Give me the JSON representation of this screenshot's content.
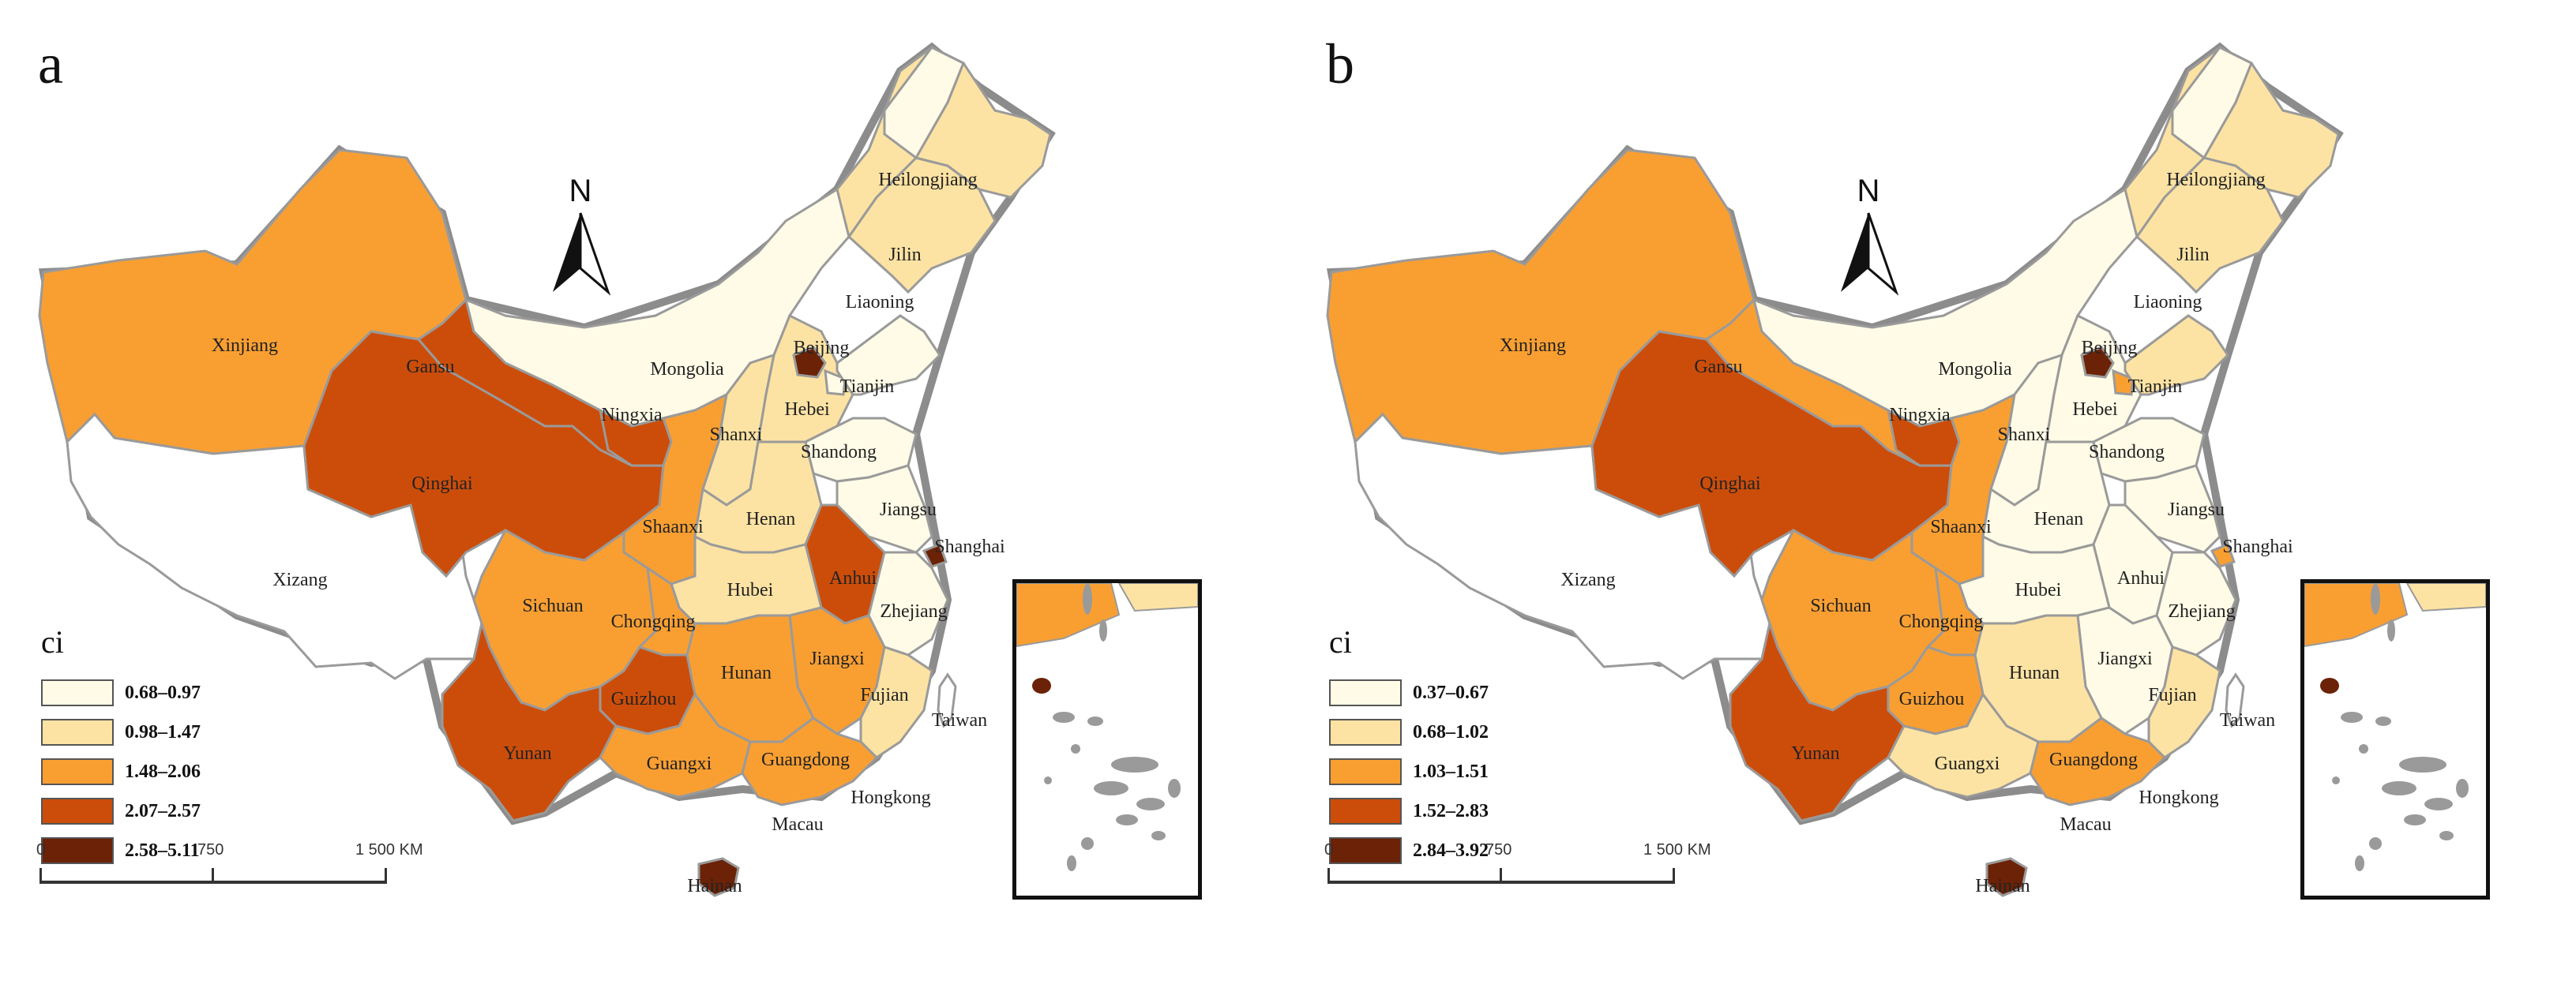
{
  "colors": {
    "class1": "#fffbe6",
    "class2": "#fde3a3",
    "class3": "#f99f32",
    "class4": "#cc4d0a",
    "class5": "#6b2206",
    "border": "#9a9a9a",
    "outline": "#8c8c8c"
  },
  "provinces": [
    "Xinjiang",
    "Xizang",
    "Qinghai",
    "Gansu",
    "Mongolia",
    "Ningxia",
    "Shaanxi",
    "Shanxi",
    "Hebei",
    "Beijing",
    "Tianjin",
    "Shandong",
    "Henan",
    "Jiangsu",
    "Shanghai",
    "Anhui",
    "Hubei",
    "Zhejiang",
    "Jiangxi",
    "Hunan",
    "Fujian",
    "Sichuan",
    "Chongqing",
    "Guizhou",
    "Yunan",
    "Guangxi",
    "Guangdong",
    "Hainan",
    "Liaoning",
    "Jilin",
    "Heilongjiang",
    "Taiwan",
    "Hongkong",
    "Macau"
  ],
  "panels": [
    {
      "letter": "a",
      "legend_title": "ci",
      "legend": [
        "0.68–0.97",
        "0.98–1.47",
        "1.48–2.06",
        "2.07–2.57",
        "2.58–5.11"
      ],
      "classes": {
        "Xinjiang": 3,
        "Xizang": 0,
        "Qinghai": 4,
        "Gansu": 4,
        "Mongolia": 1,
        "Ningxia": 4,
        "Shaanxi": 3,
        "Shanxi": 2,
        "Hebei": 2,
        "Beijing": 5,
        "Tianjin": 1,
        "Shandong": 1,
        "Henan": 2,
        "Jiangsu": 1,
        "Shanghai": 5,
        "Anhui": 4,
        "Hubei": 2,
        "Zhejiang": 1,
        "Jiangxi": 3,
        "Hunan": 3,
        "Fujian": 2,
        "Sichuan": 3,
        "Chongqing": 3,
        "Guizhou": 4,
        "Yunan": 4,
        "Guangxi": 3,
        "Guangdong": 3,
        "Hainan": 5,
        "Liaoning": 1,
        "Jilin": 2,
        "Heilongjiang": 2,
        "Taiwan": 0
      },
      "scale": {
        "zero": "0",
        "mid": "750",
        "end": "1 500 KM"
      },
      "north": "N"
    },
    {
      "letter": "b",
      "legend_title": "ci",
      "legend": [
        "0.37–0.67",
        "0.68–1.02",
        "1.03–1.51",
        "1.52–2.83",
        "2.84–3.92"
      ],
      "classes": {
        "Xinjiang": 3,
        "Xizang": 0,
        "Qinghai": 4,
        "Gansu": 3,
        "Mongolia": 1,
        "Ningxia": 4,
        "Shaanxi": 3,
        "Shanxi": 1,
        "Hebei": 1,
        "Beijing": 5,
        "Tianjin": 3,
        "Shandong": 1,
        "Henan": 1,
        "Jiangsu": 1,
        "Shanghai": 3,
        "Anhui": 1,
        "Hubei": 1,
        "Zhejiang": 1,
        "Jiangxi": 1,
        "Hunan": 2,
        "Fujian": 2,
        "Sichuan": 3,
        "Chongqing": 3,
        "Guizhou": 3,
        "Yunan": 4,
        "Guangxi": 2,
        "Guangdong": 3,
        "Hainan": 5,
        "Liaoning": 2,
        "Jilin": 2,
        "Heilongjiang": 2,
        "Taiwan": 0
      },
      "scale": {
        "zero": "0",
        "mid": "750",
        "end": "1 500 KM"
      },
      "north": "N"
    }
  ]
}
